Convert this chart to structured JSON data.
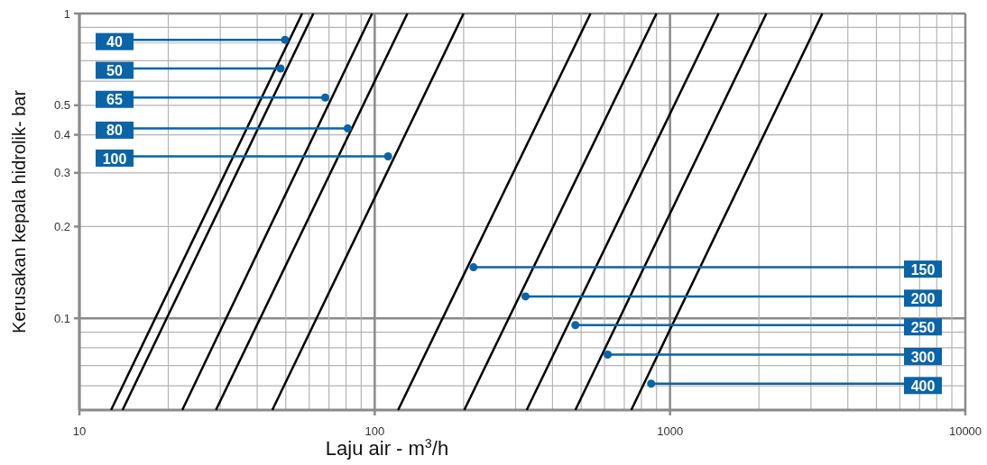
{
  "chart_data": {
    "type": "line",
    "xlabel": "Laju air - m$^{3}$/h",
    "ylabel": "Kerusakan kepala hidrolik- bar",
    "log": "xy",
    "grid": true,
    "marker": "none",
    "line_style": "solid",
    "xlim": [
      10,
      10000
    ],
    "ylim": [
      0.05,
      1
    ],
    "xticks": [
      10,
      {
        "value": 20,
        "label": null
      },
      {
        "value": 30,
        "label": null
      },
      {
        "value": 40,
        "label": null
      },
      {
        "value": 50,
        "label": null
      },
      {
        "value": 60,
        "label": null
      },
      {
        "value": 70,
        "label": null
      },
      {
        "value": 80,
        "label": null
      },
      {
        "value": 90,
        "label": null
      },
      100,
      {
        "value": 200,
        "label": null
      },
      {
        "value": 300,
        "label": null
      },
      {
        "value": 400,
        "label": null
      },
      {
        "value": 500,
        "label": null
      },
      {
        "value": 600,
        "label": null
      },
      {
        "value": 700,
        "label": null
      },
      {
        "value": 800,
        "label": null
      },
      {
        "value": 900,
        "label": null
      },
      1000,
      {
        "value": 2000,
        "label": null
      },
      {
        "value": 3000,
        "label": null
      },
      {
        "value": 4000,
        "label": null
      },
      {
        "value": 5000,
        "label": null
      },
      {
        "value": 6000,
        "label": null
      },
      {
        "value": 7000,
        "label": null
      },
      {
        "value": 8000,
        "label": null
      },
      {
        "value": 9000,
        "label": null
      },
      10000
    ],
    "yticks": [
      {
        "value": 0.06,
        "label": null
      },
      {
        "value": 0.07,
        "label": null
      },
      {
        "value": 0.08,
        "label": null
      },
      {
        "value": 0.09,
        "label": null
      },
      0.1,
      0.2,
      0.3,
      0.4,
      0.5,
      {
        "value": 0.6,
        "label": null
      },
      {
        "value": 0.7,
        "label": null
      },
      {
        "value": 0.8,
        "label": null
      },
      {
        "value": 0.9,
        "label": null
      },
      1
    ],
    "series": [
      {
        "color": "#000000",
        "x": [
          12.8,
          56.8
        ],
        "values": [
          0.05,
          1
        ]
      },
      {
        "color": "#000000",
        "x": [
          14,
          62
        ],
        "values": [
          0.05,
          1
        ]
      },
      {
        "color": "#000000",
        "x": [
          22.3,
          98
        ],
        "values": [
          0.05,
          1
        ]
      },
      {
        "color": "#000000",
        "x": [
          29,
          129
        ],
        "values": [
          0.05,
          1
        ]
      },
      {
        "color": "#000000",
        "x": [
          45,
          200
        ],
        "values": [
          0.05,
          1
        ]
      },
      {
        "color": "#000000",
        "x": [
          120,
          538
        ],
        "values": [
          0.05,
          1
        ]
      },
      {
        "color": "#000000",
        "x": [
          201,
          900
        ],
        "values": [
          0.05,
          1
        ]
      },
      {
        "color": "#000000",
        "x": [
          327,
          1460
        ],
        "values": [
          0.05,
          1
        ]
      },
      {
        "color": "#000000",
        "x": [
          478,
          2120
        ],
        "values": [
          0.05,
          1
        ]
      },
      {
        "color": "#000000",
        "x": [
          739,
          3280
        ],
        "values": [
          0.05,
          1
        ]
      }
    ],
    "annotations": [
      {
        "text": "40",
        "x": 49.7,
        "y": 0.82
      },
      {
        "text": "50",
        "x": 48,
        "y": 0.66
      },
      {
        "text": "65",
        "x": 68,
        "y": 0.53
      },
      {
        "text": "80",
        "x": 81,
        "y": 0.42
      },
      {
        "text": "100",
        "x": 111,
        "y": 0.34
      },
      {
        "text": "150",
        "x": 216,
        "y": 0.147
      },
      {
        "text": "200",
        "x": 324,
        "y": 0.118
      },
      {
        "text": "250",
        "x": 478,
        "y": 0.095
      },
      {
        "text": "300",
        "x": 615,
        "y": 0.076
      },
      {
        "text": "400",
        "x": 863,
        "y": 0.061
      }
    ]
  }
}
